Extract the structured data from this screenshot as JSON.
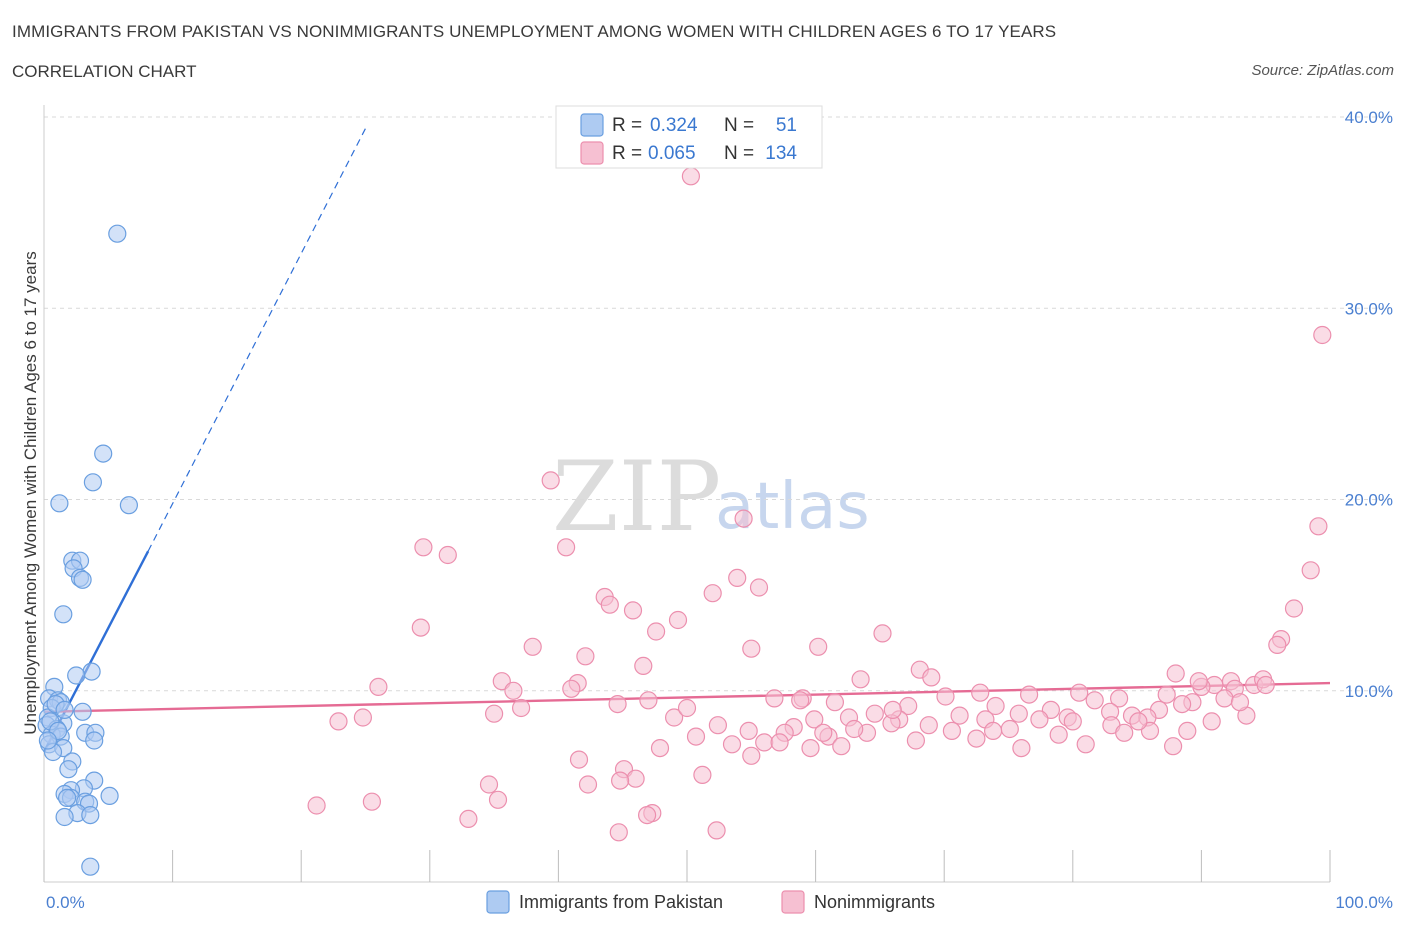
{
  "header": {
    "title": "IMMIGRANTS FROM PAKISTAN VS NONIMMIGRANTS UNEMPLOYMENT AMONG WOMEN WITH CHILDREN AGES 6 TO 17 YEARS",
    "subtitle": "CORRELATION CHART",
    "source": "Source: ZipAtlas.com"
  },
  "watermark": {
    "zip": "ZIP",
    "atlas": "atlas"
  },
  "legend": {
    "series1": {
      "r_label": "R =",
      "r_value": "0.324",
      "n_label": "N =",
      "n_value": "51"
    },
    "series2": {
      "r_label": "R =",
      "r_value": "0.065",
      "n_label": "N =",
      "n_value": "134"
    }
  },
  "bottom_legend": {
    "series1": "Immigrants from Pakistan",
    "series2": "Nonimmigrants"
  },
  "colors": {
    "blue_fill": "#aecbf2",
    "blue_stroke": "#6a9fe0",
    "blue_line": "#2f6fd6",
    "pink_fill": "#f6c0d2",
    "pink_stroke": "#ec8fae",
    "pink_line": "#e56b94",
    "grid": "#d9d9d9",
    "axis_label": "#4a7fd0"
  },
  "chart_data": {
    "type": "scatter",
    "title": "IMMIGRANTS FROM PAKISTAN VS NONIMMIGRANTS UNEMPLOYMENT AMONG WOMEN WITH CHILDREN AGES 6 TO 17 YEARS",
    "xlabel": "",
    "ylabel": "Unemployment Among Women with Children Ages 6 to 17 years",
    "xlim": [
      0,
      100
    ],
    "ylim": [
      0,
      40
    ],
    "x_tick_labels": [
      "0.0%",
      "100.0%"
    ],
    "y_ticks": [
      10,
      20,
      30,
      40
    ],
    "y_tick_labels": [
      "10.0%",
      "20.0%",
      "30.0%",
      "40.0%"
    ],
    "grid": true,
    "legend_position": "top-center",
    "series": [
      {
        "name": "Immigrants from Pakistan",
        "r": 0.324,
        "n": 51,
        "trend": {
          "x": [
            0,
            8.1
          ],
          "y": [
            6.8,
            17.3
          ],
          "dashed_to": [
            25,
            39.4
          ]
        },
        "points": [
          [
            5.7,
            33.9
          ],
          [
            4.6,
            22.4
          ],
          [
            3.8,
            20.9
          ],
          [
            6.6,
            19.7
          ],
          [
            1.2,
            19.8
          ],
          [
            2.2,
            16.8
          ],
          [
            2.8,
            16.8
          ],
          [
            2.3,
            16.4
          ],
          [
            2.8,
            15.9
          ],
          [
            3.0,
            15.8
          ],
          [
            1.5,
            14.0
          ],
          [
            3.7,
            11.0
          ],
          [
            2.5,
            10.8
          ],
          [
            0.8,
            10.2
          ],
          [
            0.4,
            9.6
          ],
          [
            1.1,
            9.5
          ],
          [
            1.3,
            9.4
          ],
          [
            0.6,
            9.1
          ],
          [
            3.0,
            8.9
          ],
          [
            0.3,
            8.6
          ],
          [
            1.5,
            8.3
          ],
          [
            0.2,
            8.2
          ],
          [
            1.0,
            8.0
          ],
          [
            3.2,
            7.8
          ],
          [
            4.0,
            7.8
          ],
          [
            0.6,
            7.7
          ],
          [
            1.3,
            7.6
          ],
          [
            3.9,
            7.4
          ],
          [
            0.4,
            7.2
          ],
          [
            1.5,
            7.0
          ],
          [
            0.7,
            6.8
          ],
          [
            2.2,
            6.3
          ],
          [
            1.9,
            5.9
          ],
          [
            3.9,
            5.3
          ],
          [
            3.1,
            4.9
          ],
          [
            2.1,
            4.8
          ],
          [
            1.6,
            4.6
          ],
          [
            2.1,
            4.4
          ],
          [
            5.1,
            4.5
          ],
          [
            1.8,
            4.4
          ],
          [
            3.2,
            4.2
          ],
          [
            3.5,
            4.1
          ],
          [
            2.6,
            3.6
          ],
          [
            3.6,
            3.5
          ],
          [
            1.6,
            3.4
          ],
          [
            3.6,
            0.8
          ],
          [
            0.9,
            9.3
          ],
          [
            0.5,
            8.4
          ],
          [
            1.1,
            7.9
          ],
          [
            0.3,
            7.4
          ],
          [
            1.6,
            9.0
          ]
        ]
      },
      {
        "name": "Nonimmigrants",
        "r": 0.065,
        "n": 134,
        "trend": {
          "x": [
            0,
            100
          ],
          "y": [
            8.9,
            10.4
          ]
        },
        "points": [
          [
            50.3,
            36.9
          ],
          [
            99.4,
            28.6
          ],
          [
            39.4,
            21.0
          ],
          [
            54.4,
            19.0
          ],
          [
            99.1,
            18.6
          ],
          [
            29.5,
            17.5
          ],
          [
            31.4,
            17.1
          ],
          [
            40.6,
            17.5
          ],
          [
            98.5,
            16.3
          ],
          [
            53.9,
            15.9
          ],
          [
            55.6,
            15.4
          ],
          [
            52.0,
            15.1
          ],
          [
            43.6,
            14.9
          ],
          [
            44.0,
            14.5
          ],
          [
            45.8,
            14.2
          ],
          [
            97.2,
            14.3
          ],
          [
            49.3,
            13.7
          ],
          [
            29.3,
            13.3
          ],
          [
            47.6,
            13.1
          ],
          [
            65.2,
            13.0
          ],
          [
            96.2,
            12.7
          ],
          [
            95.9,
            12.4
          ],
          [
            38.0,
            12.3
          ],
          [
            55.0,
            12.2
          ],
          [
            60.2,
            12.3
          ],
          [
            42.1,
            11.8
          ],
          [
            68.1,
            11.1
          ],
          [
            88.0,
            10.9
          ],
          [
            69.0,
            10.7
          ],
          [
            63.5,
            10.6
          ],
          [
            92.3,
            10.5
          ],
          [
            35.6,
            10.5
          ],
          [
            41.5,
            10.4
          ],
          [
            26.0,
            10.2
          ],
          [
            41.0,
            10.1
          ],
          [
            91.0,
            10.3
          ],
          [
            90.0,
            10.2
          ],
          [
            92.6,
            10.1
          ],
          [
            87.3,
            9.8
          ],
          [
            72.8,
            9.9
          ],
          [
            80.5,
            9.9
          ],
          [
            76.6,
            9.8
          ],
          [
            70.1,
            9.7
          ],
          [
            83.6,
            9.6
          ],
          [
            56.8,
            9.6
          ],
          [
            59.0,
            9.6
          ],
          [
            81.7,
            9.5
          ],
          [
            89.3,
            9.4
          ],
          [
            88.5,
            9.3
          ],
          [
            67.2,
            9.2
          ],
          [
            61.5,
            9.4
          ],
          [
            74.0,
            9.2
          ],
          [
            86.7,
            9.0
          ],
          [
            78.3,
            9.0
          ],
          [
            82.9,
            8.9
          ],
          [
            75.8,
            8.8
          ],
          [
            64.6,
            8.8
          ],
          [
            93.5,
            8.7
          ],
          [
            84.6,
            8.7
          ],
          [
            71.2,
            8.7
          ],
          [
            79.6,
            8.6
          ],
          [
            85.8,
            8.6
          ],
          [
            62.6,
            8.6
          ],
          [
            66.5,
            8.5
          ],
          [
            77.4,
            8.5
          ],
          [
            73.2,
            8.5
          ],
          [
            59.9,
            8.5
          ],
          [
            24.8,
            8.6
          ],
          [
            90.8,
            8.4
          ],
          [
            65.9,
            8.3
          ],
          [
            80.0,
            8.4
          ],
          [
            83.0,
            8.2
          ],
          [
            68.8,
            8.2
          ],
          [
            58.3,
            8.1
          ],
          [
            75.1,
            8.0
          ],
          [
            86.0,
            7.9
          ],
          [
            70.6,
            7.9
          ],
          [
            64.0,
            7.8
          ],
          [
            57.6,
            7.8
          ],
          [
            88.9,
            7.9
          ],
          [
            61.0,
            7.6
          ],
          [
            78.9,
            7.7
          ],
          [
            84.0,
            7.8
          ],
          [
            72.5,
            7.5
          ],
          [
            67.8,
            7.4
          ],
          [
            56.0,
            7.3
          ],
          [
            62.0,
            7.1
          ],
          [
            81.0,
            7.2
          ],
          [
            76.0,
            7.0
          ],
          [
            59.6,
            7.0
          ],
          [
            87.8,
            7.1
          ],
          [
            53.5,
            7.2
          ],
          [
            50.7,
            7.6
          ],
          [
            49.0,
            8.6
          ],
          [
            52.4,
            8.2
          ],
          [
            47.0,
            9.5
          ],
          [
            44.6,
            9.3
          ],
          [
            35.0,
            8.8
          ],
          [
            36.5,
            10.0
          ],
          [
            50.0,
            9.1
          ],
          [
            58.8,
            9.5
          ],
          [
            63.0,
            8.0
          ],
          [
            22.9,
            8.4
          ],
          [
            37.1,
            9.1
          ],
          [
            46.6,
            11.3
          ],
          [
            54.8,
            7.9
          ],
          [
            51.2,
            5.6
          ],
          [
            45.1,
            5.9
          ],
          [
            47.9,
            7.0
          ],
          [
            55.0,
            6.6
          ],
          [
            46.0,
            5.4
          ],
          [
            44.8,
            5.3
          ],
          [
            42.3,
            5.1
          ],
          [
            34.6,
            5.1
          ],
          [
            35.3,
            4.3
          ],
          [
            25.5,
            4.2
          ],
          [
            21.2,
            4.0
          ],
          [
            33.0,
            3.3
          ],
          [
            47.3,
            3.6
          ],
          [
            46.9,
            3.5
          ],
          [
            44.7,
            2.6
          ],
          [
            52.3,
            2.7
          ],
          [
            41.6,
            6.4
          ],
          [
            57.2,
            7.3
          ],
          [
            66.0,
            9.0
          ],
          [
            89.8,
            10.5
          ],
          [
            94.1,
            10.3
          ],
          [
            94.8,
            10.6
          ],
          [
            91.8,
            9.6
          ],
          [
            95.0,
            10.3
          ],
          [
            93.0,
            9.4
          ],
          [
            85.1,
            8.4
          ],
          [
            73.8,
            7.9
          ],
          [
            60.6,
            7.8
          ]
        ]
      }
    ]
  }
}
